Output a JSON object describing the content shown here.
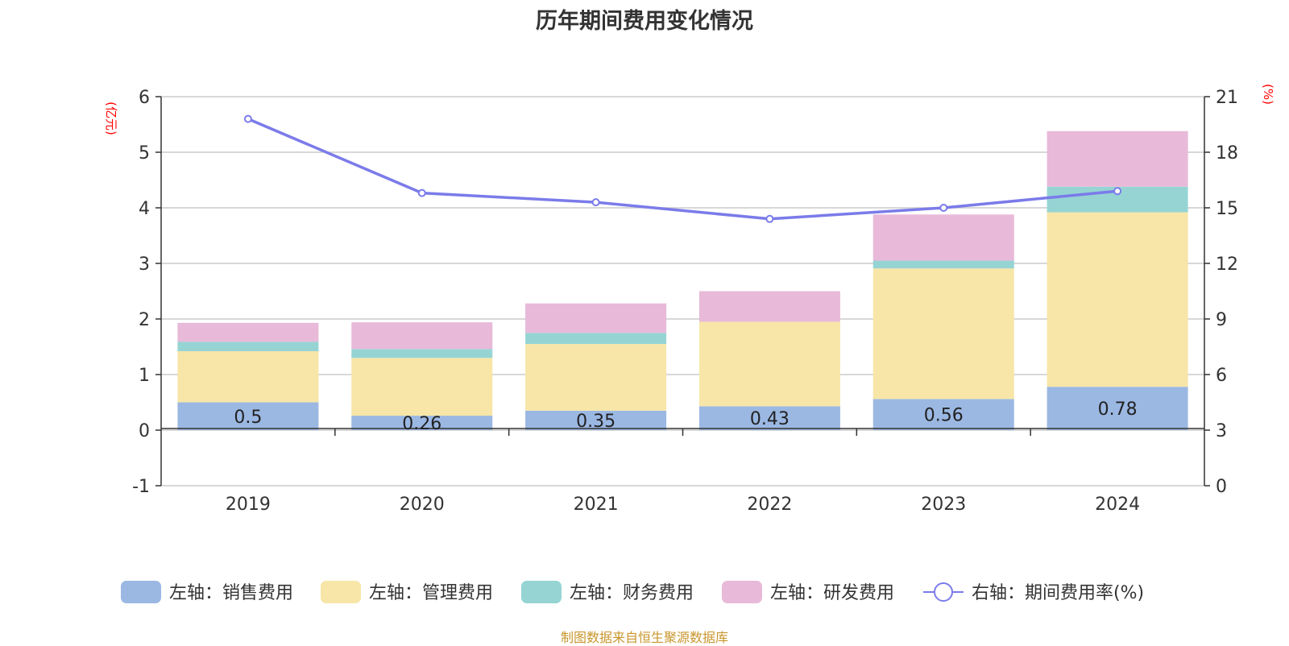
{
  "chart_data": {
    "type": "bar",
    "title": "历年期间费用变化情况",
    "categories": [
      "2019",
      "2020",
      "2021",
      "2022",
      "2023",
      "2024"
    ],
    "stacked": true,
    "y_left": {
      "unit": "(亿元)",
      "ylim": [
        -1,
        6
      ],
      "ticks": [
        -1,
        0,
        1,
        2,
        3,
        4,
        5,
        6
      ]
    },
    "y_right": {
      "unit": "(%)",
      "ylim": [
        0,
        21
      ],
      "ticks": [
        0,
        3,
        6,
        9,
        12,
        15,
        18,
        21
      ]
    },
    "series": [
      {
        "name": "左轴：销售费用",
        "axis": "left",
        "type": "bar",
        "color": "#9bb8e3",
        "values": [
          0.5,
          0.26,
          0.35,
          0.43,
          0.56,
          0.78
        ]
      },
      {
        "name": "左轴：管理费用",
        "axis": "left",
        "type": "bar",
        "color": "#f7e6a8",
        "values": [
          0.92,
          1.04,
          1.2,
          1.52,
          2.35,
          3.14
        ]
      },
      {
        "name": "左轴：财务费用",
        "axis": "left",
        "type": "bar",
        "color": "#96d4d4",
        "values": [
          0.17,
          0.16,
          0.2,
          0.0,
          0.14,
          0.46
        ]
      },
      {
        "name": "左轴：研发费用",
        "axis": "left",
        "type": "bar",
        "color": "#e8b9d9",
        "values": [
          0.34,
          0.48,
          0.53,
          0.55,
          0.83,
          1.0
        ]
      },
      {
        "name": "右轴：期间费用率(%)",
        "axis": "right",
        "type": "line",
        "color": "#7b7bea",
        "values": [
          19.8,
          15.8,
          15.3,
          14.4,
          15.0,
          15.9
        ]
      }
    ],
    "data_labels": {
      "series": "左轴：销售费用",
      "labels": [
        "0.5",
        "0.26",
        "0.35",
        "0.43",
        "0.56",
        "0.78"
      ]
    },
    "grid": true,
    "legend_position": "bottom"
  },
  "footer": {
    "source": "制图数据来自恒生聚源数据库"
  }
}
